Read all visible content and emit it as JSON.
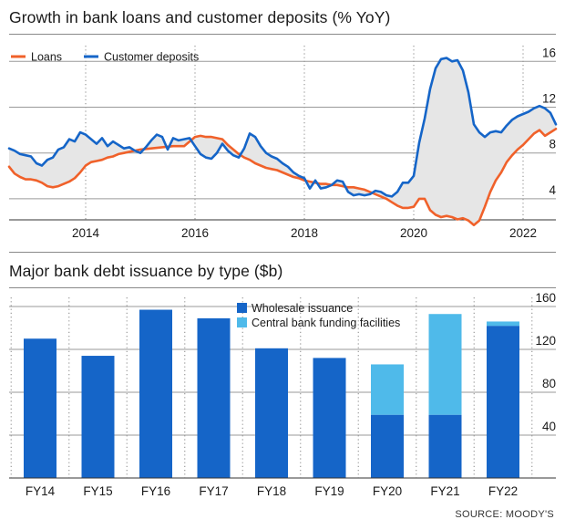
{
  "colors": {
    "loans": "#f0612a",
    "deposits": "#1565c8",
    "gap_fill": "#e6e6e6",
    "wholesale": "#1565c8",
    "central_bank": "#4fbaea",
    "grid": "#9a9a9a",
    "text": "#1a1a1a"
  },
  "source": "SOURCE: MOODY'S",
  "chart_data": [
    {
      "type": "line",
      "title": "Growth in bank loans and customer deposits (% YoY)",
      "xlabel": "",
      "ylabel": "",
      "xlim": [
        2012.6,
        2022.6
      ],
      "ylim": [
        2,
        16.5
      ],
      "x_ticks": [
        "2014",
        "2016",
        "2018",
        "2020",
        "2022"
      ],
      "y_ticks": [
        4,
        8,
        12,
        16
      ],
      "legend_position": "top-left",
      "grid": "horizontal gridlines and dotted vertical year lines",
      "series": [
        {
          "name": "Loans",
          "color": "#f0612a",
          "points": [
            [
              2012.6,
              6.8
            ],
            [
              2012.7,
              6.2
            ],
            [
              2012.8,
              5.9
            ],
            [
              2012.9,
              5.7
            ],
            [
              2013.0,
              5.7
            ],
            [
              2013.1,
              5.6
            ],
            [
              2013.2,
              5.4
            ],
            [
              2013.3,
              5.1
            ],
            [
              2013.4,
              5.0
            ],
            [
              2013.5,
              5.1
            ],
            [
              2013.6,
              5.3
            ],
            [
              2013.7,
              5.5
            ],
            [
              2013.8,
              5.8
            ],
            [
              2013.9,
              6.3
            ],
            [
              2014.0,
              6.9
            ],
            [
              2014.1,
              7.2
            ],
            [
              2014.2,
              7.3
            ],
            [
              2014.3,
              7.4
            ],
            [
              2014.4,
              7.6
            ],
            [
              2014.5,
              7.7
            ],
            [
              2014.6,
              7.9
            ],
            [
              2014.7,
              8.0
            ],
            [
              2014.8,
              8.1
            ],
            [
              2014.9,
              8.2
            ],
            [
              2015.0,
              8.3
            ],
            [
              2015.2,
              8.4
            ],
            [
              2015.4,
              8.5
            ],
            [
              2015.6,
              8.6
            ],
            [
              2015.8,
              8.6
            ],
            [
              2016.0,
              9.4
            ],
            [
              2016.1,
              9.5
            ],
            [
              2016.2,
              9.4
            ],
            [
              2016.3,
              9.4
            ],
            [
              2016.4,
              9.3
            ],
            [
              2016.5,
              9.2
            ],
            [
              2016.6,
              8.7
            ],
            [
              2016.7,
              8.3
            ],
            [
              2016.8,
              7.9
            ],
            [
              2016.9,
              7.6
            ],
            [
              2017.0,
              7.4
            ],
            [
              2017.1,
              7.1
            ],
            [
              2017.2,
              6.9
            ],
            [
              2017.3,
              6.7
            ],
            [
              2017.4,
              6.6
            ],
            [
              2017.5,
              6.5
            ],
            [
              2017.6,
              6.3
            ],
            [
              2017.7,
              6.1
            ],
            [
              2017.8,
              5.9
            ],
            [
              2017.9,
              5.8
            ],
            [
              2018.0,
              5.6
            ],
            [
              2018.1,
              5.5
            ],
            [
              2018.2,
              5.4
            ],
            [
              2018.3,
              5.3
            ],
            [
              2018.4,
              5.3
            ],
            [
              2018.5,
              5.2
            ],
            [
              2018.6,
              5.2
            ],
            [
              2018.7,
              5.1
            ],
            [
              2018.8,
              5.0
            ],
            [
              2018.9,
              5.0
            ],
            [
              2019.0,
              4.9
            ],
            [
              2019.1,
              4.8
            ],
            [
              2019.2,
              4.6
            ],
            [
              2019.3,
              4.4
            ],
            [
              2019.4,
              4.2
            ],
            [
              2019.5,
              4.0
            ],
            [
              2019.6,
              3.7
            ],
            [
              2019.7,
              3.4
            ],
            [
              2019.8,
              3.2
            ],
            [
              2019.9,
              3.2
            ],
            [
              2020.0,
              3.3
            ],
            [
              2020.1,
              4.0
            ],
            [
              2020.2,
              4.0
            ],
            [
              2020.3,
              3.0
            ],
            [
              2020.4,
              2.6
            ],
            [
              2020.5,
              2.4
            ],
            [
              2020.6,
              2.5
            ],
            [
              2020.7,
              2.4
            ],
            [
              2020.8,
              2.2
            ],
            [
              2020.9,
              2.3
            ],
            [
              2021.0,
              2.1
            ],
            [
              2021.1,
              1.7
            ],
            [
              2021.2,
              2.1
            ],
            [
              2021.3,
              3.3
            ],
            [
              2021.4,
              4.6
            ],
            [
              2021.5,
              5.6
            ],
            [
              2021.6,
              6.3
            ],
            [
              2021.7,
              7.2
            ],
            [
              2021.8,
              7.8
            ],
            [
              2021.9,
              8.3
            ],
            [
              2022.0,
              8.7
            ],
            [
              2022.1,
              9.2
            ],
            [
              2022.2,
              9.7
            ],
            [
              2022.3,
              10.0
            ],
            [
              2022.4,
              9.5
            ],
            [
              2022.5,
              9.8
            ],
            [
              2022.6,
              10.1
            ]
          ]
        },
        {
          "name": "Customer deposits",
          "color": "#1565c8",
          "points": [
            [
              2012.6,
              8.4
            ],
            [
              2012.7,
              8.2
            ],
            [
              2012.8,
              7.9
            ],
            [
              2012.9,
              7.8
            ],
            [
              2013.0,
              7.7
            ],
            [
              2013.1,
              7.1
            ],
            [
              2013.2,
              6.9
            ],
            [
              2013.3,
              7.4
            ],
            [
              2013.4,
              7.6
            ],
            [
              2013.5,
              8.3
            ],
            [
              2013.6,
              8.5
            ],
            [
              2013.7,
              9.2
            ],
            [
              2013.8,
              9.0
            ],
            [
              2013.9,
              9.8
            ],
            [
              2014.0,
              9.6
            ],
            [
              2014.1,
              9.2
            ],
            [
              2014.2,
              8.8
            ],
            [
              2014.3,
              9.3
            ],
            [
              2014.4,
              8.6
            ],
            [
              2014.5,
              9.0
            ],
            [
              2014.6,
              8.7
            ],
            [
              2014.7,
              8.4
            ],
            [
              2014.8,
              8.5
            ],
            [
              2014.9,
              8.2
            ],
            [
              2015.0,
              8.0
            ],
            [
              2015.1,
              8.5
            ],
            [
              2015.2,
              9.1
            ],
            [
              2015.3,
              9.6
            ],
            [
              2015.4,
              9.4
            ],
            [
              2015.5,
              8.3
            ],
            [
              2015.6,
              9.3
            ],
            [
              2015.7,
              9.1
            ],
            [
              2015.8,
              9.2
            ],
            [
              2015.9,
              9.3
            ],
            [
              2016.0,
              8.6
            ],
            [
              2016.1,
              7.9
            ],
            [
              2016.2,
              7.6
            ],
            [
              2016.3,
              7.5
            ],
            [
              2016.4,
              8.0
            ],
            [
              2016.5,
              8.8
            ],
            [
              2016.6,
              8.2
            ],
            [
              2016.7,
              7.8
            ],
            [
              2016.8,
              7.6
            ],
            [
              2016.9,
              8.4
            ],
            [
              2017.0,
              9.7
            ],
            [
              2017.1,
              9.4
            ],
            [
              2017.2,
              8.6
            ],
            [
              2017.3,
              8.0
            ],
            [
              2017.4,
              7.7
            ],
            [
              2017.5,
              7.5
            ],
            [
              2017.6,
              7.1
            ],
            [
              2017.7,
              6.8
            ],
            [
              2017.8,
              6.3
            ],
            [
              2017.9,
              6.0
            ],
            [
              2018.0,
              5.8
            ],
            [
              2018.1,
              4.9
            ],
            [
              2018.2,
              5.6
            ],
            [
              2018.3,
              4.9
            ],
            [
              2018.4,
              5.0
            ],
            [
              2018.5,
              5.2
            ],
            [
              2018.6,
              5.6
            ],
            [
              2018.7,
              5.5
            ],
            [
              2018.8,
              4.6
            ],
            [
              2018.9,
              4.3
            ],
            [
              2019.0,
              4.4
            ],
            [
              2019.1,
              4.3
            ],
            [
              2019.2,
              4.4
            ],
            [
              2019.3,
              4.7
            ],
            [
              2019.4,
              4.6
            ],
            [
              2019.5,
              4.3
            ],
            [
              2019.6,
              4.2
            ],
            [
              2019.7,
              4.6
            ],
            [
              2019.8,
              5.4
            ],
            [
              2019.9,
              5.4
            ],
            [
              2020.0,
              6.0
            ],
            [
              2020.1,
              8.9
            ],
            [
              2020.2,
              11.0
            ],
            [
              2020.3,
              13.6
            ],
            [
              2020.4,
              15.4
            ],
            [
              2020.5,
              16.2
            ],
            [
              2020.6,
              16.3
            ],
            [
              2020.7,
              16.0
            ],
            [
              2020.8,
              16.1
            ],
            [
              2020.9,
              15.2
            ],
            [
              2021.0,
              13.3
            ],
            [
              2021.1,
              10.5
            ],
            [
              2021.2,
              9.8
            ],
            [
              2021.3,
              9.4
            ],
            [
              2021.4,
              9.8
            ],
            [
              2021.5,
              9.9
            ],
            [
              2021.6,
              9.8
            ],
            [
              2021.7,
              10.4
            ],
            [
              2021.8,
              10.9
            ],
            [
              2021.9,
              11.2
            ],
            [
              2022.0,
              11.4
            ],
            [
              2022.1,
              11.6
            ],
            [
              2022.2,
              11.9
            ],
            [
              2022.3,
              12.1
            ],
            [
              2022.4,
              11.9
            ],
            [
              2022.5,
              11.5
            ],
            [
              2022.6,
              10.5
            ]
          ]
        }
      ]
    },
    {
      "type": "bar",
      "stacked": true,
      "title": "Major bank debt issuance by type ($b)",
      "xlabel": "",
      "ylabel": "",
      "categories": [
        "FY14",
        "FY15",
        "FY16",
        "FY17",
        "FY18",
        "FY19",
        "FY20",
        "FY21",
        "FY22"
      ],
      "ylim": [
        0,
        170
      ],
      "y_ticks": [
        40,
        80,
        120,
        160
      ],
      "legend_position": "top-center",
      "grid": "horizontal gridlines and dotted vertical lines",
      "series": [
        {
          "name": "Wholesale issuance",
          "color": "#1565c8",
          "values": [
            130,
            114,
            157,
            149,
            121,
            112,
            59,
            59,
            142
          ]
        },
        {
          "name": "Central bank funding facilities",
          "color": "#4fbaea",
          "values": [
            0,
            0,
            0,
            0,
            0,
            0,
            47,
            94,
            4
          ]
        }
      ]
    }
  ]
}
